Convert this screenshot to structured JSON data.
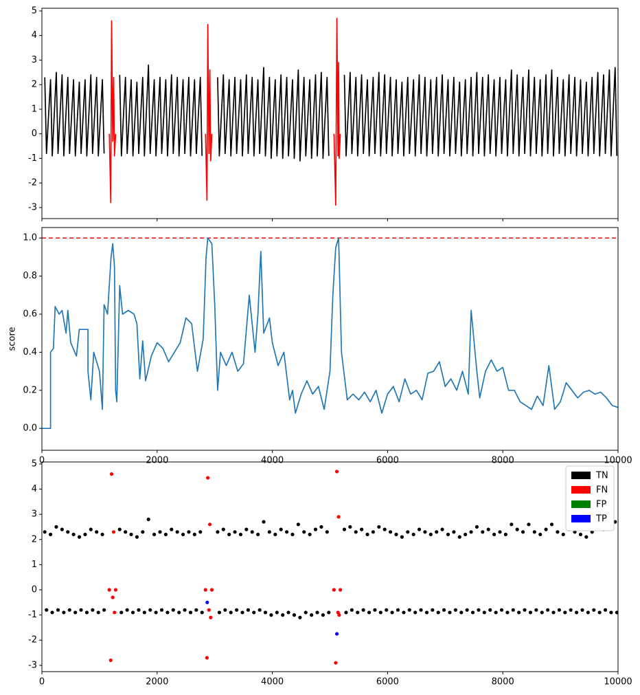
{
  "chart_data": [
    {
      "type": "line",
      "xlim": [
        0,
        10000
      ],
      "ylim": [
        -3.45,
        5.11
      ],
      "xticks": [
        0,
        2000,
        4000,
        6000,
        8000,
        10000
      ],
      "yticks": [
        -3,
        -2,
        -1,
        0,
        1,
        2,
        3,
        4,
        5
      ],
      "series": [
        {
          "color": "#000000",
          "x": [
            50,
            80,
            150,
            180,
            250,
            280,
            350,
            380,
            450,
            480,
            550,
            580,
            650,
            680,
            750,
            780,
            850,
            880,
            950,
            980,
            1050,
            1080,
            1150,
            1180,
            1250,
            1280,
            1350,
            1380,
            1450,
            1480,
            1550,
            1580,
            1650,
            1680,
            1750,
            1780,
            1850,
            1880,
            1950,
            1980,
            2050,
            2080,
            2150,
            2180,
            2250,
            2280,
            2350,
            2380,
            2450,
            2480,
            2550,
            2580,
            2650,
            2680,
            2750,
            2780,
            2850,
            2880,
            2950,
            2980,
            3050,
            3080,
            3150,
            3180,
            3250,
            3280,
            3350,
            3380,
            3450,
            3480,
            3550,
            3580,
            3650,
            3680,
            3750,
            3780,
            3850,
            3880,
            3950,
            3980,
            4050,
            4080,
            4150,
            4180,
            4250,
            4280,
            4350,
            4380,
            4450,
            4480,
            4550,
            4580,
            4650,
            4680,
            4750,
            4780,
            4850,
            4880,
            4950,
            4980,
            5050,
            5080,
            5150,
            5180,
            5250,
            5280,
            5350,
            5380,
            5450,
            5480,
            5550,
            5580,
            5650,
            5680,
            5750,
            5780,
            5850,
            5880,
            5950,
            5980,
            6050,
            6080,
            6150,
            6180,
            6250,
            6280,
            6350,
            6380,
            6450,
            6480,
            6550,
            6580,
            6650,
            6680,
            6750,
            6780,
            6850,
            6880,
            6950,
            6980,
            7050,
            7080,
            7150,
            7180,
            7250,
            7280,
            7350,
            7380,
            7450,
            7480,
            7550,
            7580,
            7650,
            7680,
            7750,
            7780,
            7850,
            7880,
            7950,
            7980,
            8050,
            8080,
            8150,
            8180,
            8250,
            8280,
            8350,
            8380,
            8450,
            8480,
            8550,
            8580,
            8650,
            8680,
            8750,
            8780,
            8850,
            8880,
            8950,
            8980,
            9050,
            9080,
            9150,
            9180,
            9250,
            9280,
            9350,
            9380,
            9450,
            9480,
            9550,
            9580,
            9650,
            9680,
            9750,
            9780,
            9850,
            9880,
            9950,
            9980
          ],
          "values": [
            2.3,
            -0.8,
            2.2,
            -0.9,
            2.5,
            -0.8,
            2.4,
            -0.9,
            2.3,
            -0.8,
            2.2,
            -0.9,
            2.1,
            -0.8,
            2.2,
            -0.9,
            2.4,
            -0.8,
            2.3,
            -0.9,
            2.2,
            -0.8,
            null,
            null,
            null,
            null,
            2.4,
            -0.9,
            2.3,
            -0.8,
            2.2,
            -0.9,
            2.1,
            -0.8,
            2.3,
            -0.9,
            2.8,
            -0.8,
            2.2,
            -0.9,
            2.3,
            -0.8,
            2.2,
            -0.9,
            2.4,
            -0.8,
            2.3,
            -0.9,
            2.2,
            -0.8,
            2.3,
            -0.9,
            2.2,
            -0.8,
            2.3,
            -0.9,
            null,
            null,
            null,
            null,
            2.3,
            -0.9,
            2.4,
            -0.8,
            2.2,
            -0.9,
            2.3,
            -0.8,
            2.2,
            -0.9,
            2.4,
            -0.8,
            2.3,
            -0.9,
            2.2,
            -0.8,
            2.7,
            -0.9,
            2.3,
            -1.0,
            2.2,
            -0.9,
            2.4,
            -1.0,
            2.3,
            -0.9,
            2.2,
            -1.0,
            2.6,
            -1.1,
            2.3,
            -0.9,
            2.2,
            -1.0,
            2.4,
            -0.9,
            2.5,
            -1.0,
            2.3,
            -0.9,
            null,
            null,
            null,
            null,
            2.4,
            -0.9,
            2.5,
            -0.8,
            2.3,
            -0.9,
            2.4,
            -0.8,
            2.2,
            -0.9,
            2.3,
            -0.8,
            2.5,
            -0.9,
            2.4,
            -0.8,
            2.3,
            -0.9,
            2.2,
            -0.8,
            2.1,
            -0.9,
            2.3,
            -0.8,
            2.2,
            -0.9,
            2.4,
            -0.8,
            2.3,
            -0.9,
            2.2,
            -0.8,
            2.3,
            -0.9,
            2.4,
            -0.8,
            2.2,
            -0.9,
            2.3,
            -0.8,
            2.1,
            -0.9,
            2.2,
            -0.8,
            2.3,
            -0.9,
            2.5,
            -0.8,
            2.3,
            -0.9,
            2.4,
            -0.8,
            2.2,
            -0.9,
            2.3,
            -0.8,
            2.2,
            -0.9,
            2.6,
            -0.8,
            2.4,
            -0.9,
            2.3,
            -0.8,
            2.6,
            -0.9,
            2.3,
            -0.8,
            2.2,
            -0.9,
            2.4,
            -0.8,
            2.6,
            -0.9,
            2.3,
            -0.8,
            2.2,
            -0.9,
            2.4,
            -0.8,
            2.3,
            -0.9,
            2.2,
            -0.8,
            2.1,
            -0.9,
            2.3,
            -0.8,
            2.5,
            -0.9,
            2.4,
            -0.8,
            2.6,
            -0.9,
            2.7,
            -0.9
          ]
        },
        {
          "color": "#ff0000",
          "x": [
            1170,
            1195,
            1210,
            1230,
            1245,
            1260,
            1280,
            1300,
            2840,
            2865,
            2880,
            2900,
            2915,
            2930,
            2950,
            3000,
            5070,
            5100,
            5120,
            5140,
            5150,
            5160,
            5180
          ],
          "values": [
            0,
            -2.8,
            4.6,
            -0.3,
            2.3,
            -0.9,
            0,
            null,
            0,
            -2.7,
            4.45,
            -0.8,
            2.6,
            -1.1,
            0,
            null,
            0,
            -2.9,
            4.7,
            -0.9,
            2.9,
            -1.0,
            0
          ]
        }
      ]
    },
    {
      "type": "line",
      "ylabel": "score",
      "xlim": [
        0,
        10000
      ],
      "ylim": [
        -0.115,
        1.055
      ],
      "xticks": [
        0,
        2000,
        4000,
        6000,
        8000,
        10000
      ],
      "yticks": [
        {
          "value": 0,
          "label": "0.0"
        },
        0.2,
        0.4,
        0.6,
        0.8,
        {
          "value": 1,
          "label": "1.0"
        }
      ],
      "threshold": 1.0,
      "threshold_color": "#ff0000",
      "series": [
        {
          "color": "#1f77b4",
          "x": [
            0,
            150,
            150,
            200,
            230,
            300,
            350,
            420,
            450,
            500,
            600,
            650,
            800,
            800,
            850,
            900,
            1000,
            1050,
            1080,
            1140,
            1200,
            1230,
            1260,
            1280,
            1300,
            1350,
            1400,
            1500,
            1600,
            1650,
            1700,
            1750,
            1800,
            1900,
            2000,
            2100,
            2200,
            2300,
            2400,
            2500,
            2600,
            2700,
            2800,
            2850,
            2880,
            2950,
            3000,
            3050,
            3100,
            3200,
            3300,
            3400,
            3500,
            3600,
            3700,
            3750,
            3800,
            3850,
            3950,
            4000,
            4100,
            4200,
            4300,
            4350,
            4400,
            4500,
            4600,
            4700,
            4800,
            4900,
            5000,
            5050,
            5100,
            5150,
            5200,
            5300,
            5400,
            5500,
            5600,
            5700,
            5800,
            5900,
            6000,
            6100,
            6200,
            6300,
            6400,
            6500,
            6600,
            6700,
            6800,
            6900,
            7000,
            7100,
            7200,
            7300,
            7400,
            7450,
            7550,
            7600,
            7700,
            7800,
            7900,
            8000,
            8100,
            8200,
            8300,
            8400,
            8500,
            8600,
            8700,
            8800,
            8900,
            9000,
            9100,
            9200,
            9300,
            9400,
            9500,
            9600,
            9700,
            9800,
            9900,
            10000
          ],
          "values": [
            0,
            0,
            0.4,
            0.42,
            0.64,
            0.6,
            0.62,
            0.5,
            0.62,
            0.45,
            0.38,
            0.52,
            0.52,
            0.3,
            0.15,
            0.4,
            0.3,
            0.1,
            0.65,
            0.6,
            0.9,
            0.97,
            0.85,
            0.2,
            0.14,
            0.75,
            0.6,
            0.62,
            0.6,
            0.55,
            0.26,
            0.46,
            0.25,
            0.38,
            0.45,
            0.42,
            0.35,
            0.4,
            0.45,
            0.58,
            0.55,
            0.3,
            0.47,
            0.9,
            1.0,
            0.97,
            0.65,
            0.2,
            0.4,
            0.33,
            0.4,
            0.3,
            0.34,
            0.7,
            0.4,
            0.6,
            0.93,
            0.5,
            0.58,
            0.45,
            0.33,
            0.4,
            0.15,
            0.2,
            0.08,
            0.18,
            0.25,
            0.18,
            0.22,
            0.1,
            0.3,
            0.7,
            0.95,
            1.0,
            0.4,
            0.15,
            0.18,
            0.15,
            0.19,
            0.14,
            0.2,
            0.08,
            0.18,
            0.22,
            0.14,
            0.26,
            0.18,
            0.2,
            0.15,
            0.29,
            0.3,
            0.35,
            0.22,
            0.26,
            0.2,
            0.3,
            0.18,
            0.62,
            0.3,
            0.16,
            0.3,
            0.36,
            0.3,
            0.32,
            0.2,
            0.2,
            0.14,
            0.12,
            0.1,
            0.17,
            0.12,
            0.33,
            0.1,
            0.14,
            0.24,
            0.2,
            0.16,
            0.19,
            0.2,
            0.18,
            0.19,
            0.16,
            0.12,
            0.11
          ]
        }
      ]
    },
    {
      "type": "scatter",
      "xlim": [
        0,
        10000
      ],
      "ylim": [
        -3.25,
        5.08
      ],
      "xticks": [
        0,
        2000,
        4000,
        6000,
        8000,
        10000
      ],
      "yticks": [
        -3,
        -2,
        -1,
        0,
        1,
        2,
        3,
        4,
        5
      ],
      "legend": "upper right",
      "series": [
        {
          "name": "TN",
          "color": "#000000"
        },
        {
          "name": "FN",
          "color": "#ff0000"
        },
        {
          "name": "FP",
          "color": "#008000",
          "x": [],
          "values": []
        },
        {
          "name": "TP",
          "color": "#0000ff",
          "x": [
            2870,
            5120
          ],
          "values": [
            -0.5,
            -1.75
          ]
        }
      ]
    }
  ]
}
